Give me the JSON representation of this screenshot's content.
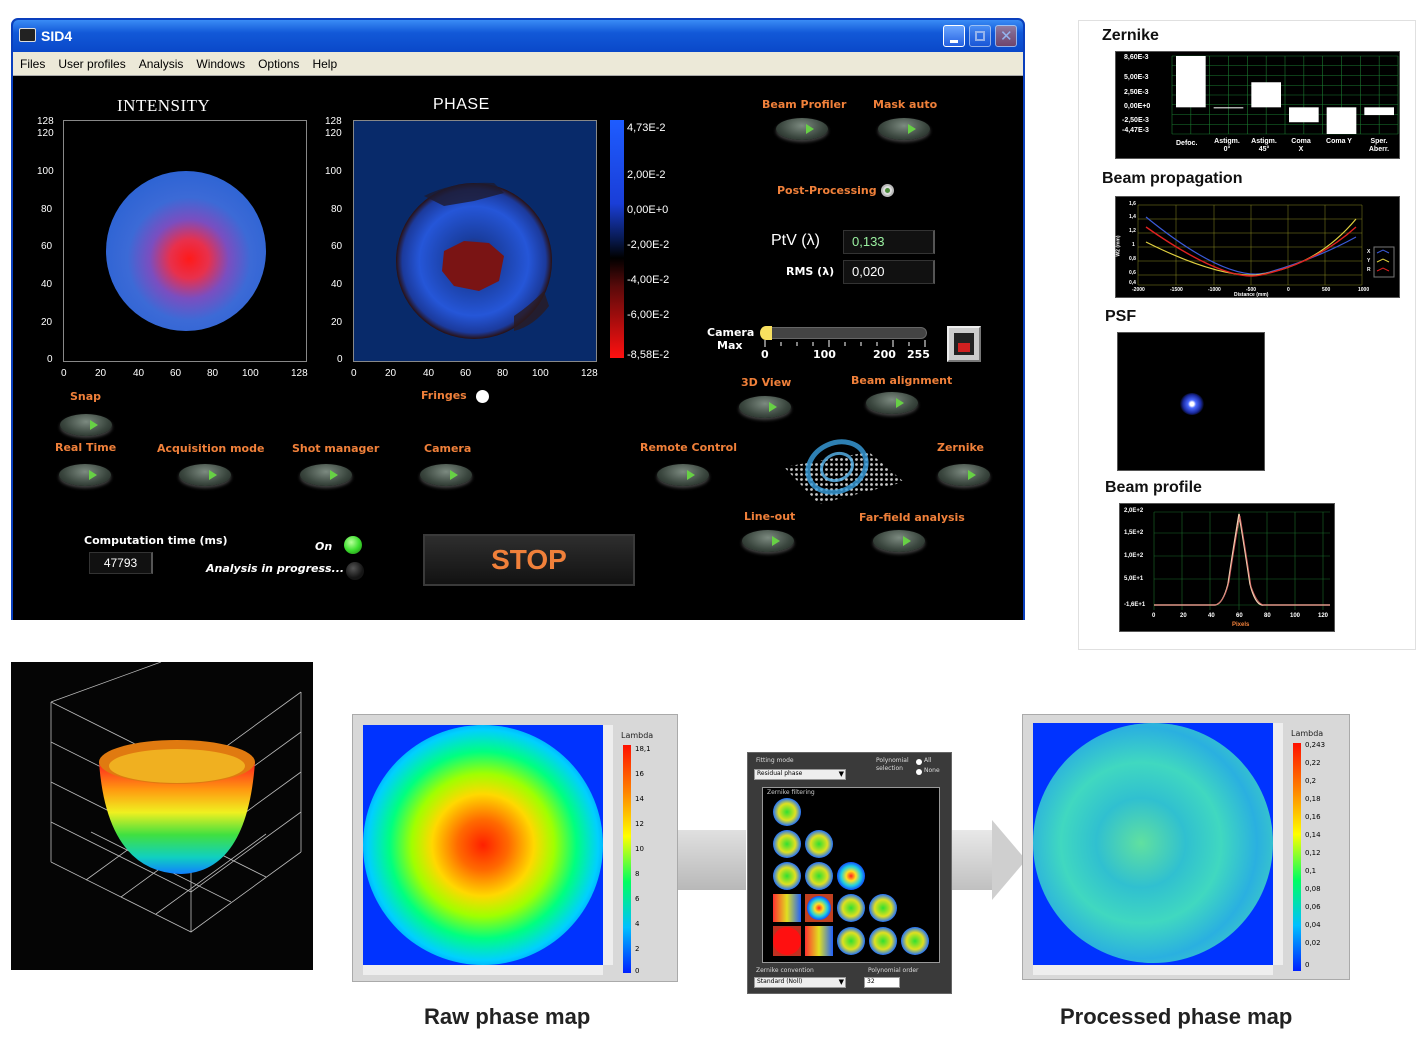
{
  "window": {
    "title": "SID4",
    "menu": [
      "Files",
      "User profiles",
      "Analysis",
      "Windows",
      "Options",
      "Help"
    ]
  },
  "intensity_plot": {
    "title": "INTENSITY",
    "y_ticks": [
      "128",
      "120",
      "100",
      "80",
      "60",
      "40",
      "20",
      "0"
    ],
    "x_ticks": [
      "0",
      "20",
      "40",
      "60",
      "80",
      "100",
      "128"
    ]
  },
  "phase_plot": {
    "title": "PHASE",
    "y_ticks": [
      "128",
      "120",
      "100",
      "80",
      "60",
      "40",
      "20",
      "0"
    ],
    "x_ticks": [
      "0",
      "20",
      "40",
      "60",
      "80",
      "100",
      "128"
    ],
    "colorbar_ticks": [
      "4,73E-2",
      "2,00E-2",
      "0,00E+0",
      "-2,00E-2",
      "-4,00E-2",
      "-6,00E-2",
      "-8,58E-2"
    ]
  },
  "buttons": {
    "beam_profiler": "Beam Profiler",
    "mask_auto": "Mask auto",
    "post_processing": "Post-Processing",
    "snap": "Snap",
    "fringes": "Fringes",
    "real_time": "Real Time",
    "acquisition_mode": "Acquisition mode",
    "shot_manager": "Shot manager",
    "camera": "Camera",
    "remote_control": "Remote Control",
    "zernike": "Zernike",
    "view_3d": "3D View",
    "beam_alignment": "Beam alignment",
    "line_out": "Line-out",
    "far_field": "Far-field analysis",
    "stop": "STOP"
  },
  "metrics": {
    "ptv_label": "PtV (λ)",
    "ptv_value": "0,133",
    "rms_label": "RMS (λ)",
    "rms_value": "0,020"
  },
  "camera_max": {
    "label_1": "Camera",
    "label_2": "Max",
    "ticks": [
      "0",
      "100",
      "200",
      "255"
    ],
    "level": 0
  },
  "status": {
    "computation_label": "Computation time (ms)",
    "computation_value": "47793",
    "on_label": "On",
    "analysis_label": "Analysis in progress..."
  },
  "zernike_panel": {
    "title": "Zernike",
    "y_ticks": [
      "8,60E-3",
      "5,00E-3",
      "2,50E-3",
      "0,00E+0",
      "-2,50E-3",
      "-4,47E-3"
    ],
    "categories": [
      "Defoc.",
      "Astigm. 0°",
      "Astigm. 45°",
      "Coma X",
      "Coma Y",
      "Sper. Aberr."
    ],
    "values": [
      8.6,
      -0.1,
      4.2,
      -2.5,
      -4.47,
      -1.3
    ]
  },
  "beam_propagation_panel": {
    "title": "Beam propagation",
    "y_ticks": [
      "1,6",
      "1,4",
      "1,2",
      "1",
      "0,8",
      "0,6",
      "0,4"
    ],
    "x_ticks": [
      "-2000",
      "-1500",
      "-1000",
      "-500",
      "0",
      "500",
      "1000"
    ],
    "ylabel": "W2 (mm)",
    "xlabel": "Distance (mm)",
    "legend": [
      "X",
      "Y",
      "R"
    ]
  },
  "psf_panel": {
    "title": "PSF"
  },
  "beam_profile_panel": {
    "title": "Beam profile",
    "y_ticks": [
      "2,0E+2",
      "1,5E+2",
      "1,0E+2",
      "5,0E+1",
      "-1,6E+1"
    ],
    "x_ticks": [
      "0",
      "20",
      "40",
      "60",
      "80",
      "100",
      "120"
    ],
    "xlabel": "Pixels"
  },
  "bottom": {
    "raw_caption": "Raw phase map",
    "processed_caption": "Processed phase map",
    "raw_colorbar_title": "Lambda",
    "raw_colorbar_ticks": [
      "18,1",
      "16",
      "14",
      "12",
      "10",
      "8",
      "6",
      "4",
      "2",
      "0"
    ],
    "processed_colorbar_title": "Lambda",
    "processed_colorbar_ticks": [
      "0,243",
      "0,22",
      "0,2",
      "0,18",
      "0,16",
      "0,14",
      "0,12",
      "0,1",
      "0,08",
      "0,06",
      "0,04",
      "0,02",
      "0"
    ],
    "fitting_mode_label": "Fitting mode",
    "fitting_mode_value": "Residual phase",
    "polynomial_label": "Polynomial selection",
    "polynomial_option_all": "All",
    "polynomial_option_none": "None",
    "zernike_conversion_label": "Zernike convention",
    "zernike_conversion_value": "Standard (Noll)",
    "polynomial_order_label": "Polynomial order",
    "polynomial_order_value": "32",
    "zernike_filtering_label": "Zernike filtering"
  },
  "colors": {
    "accent_orange": "#f0803a",
    "window_blue": "#0a48c9",
    "led_green": "#3fe030"
  }
}
